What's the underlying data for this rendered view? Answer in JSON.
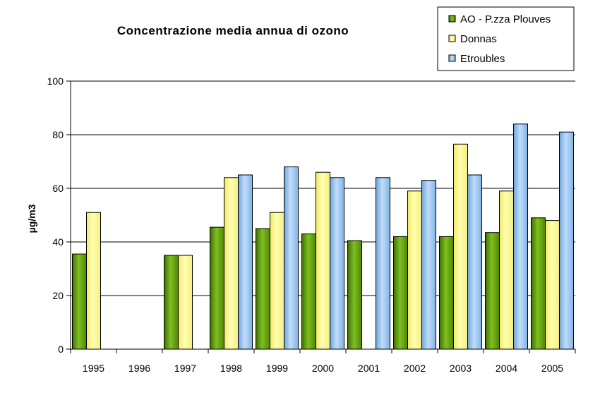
{
  "chart_data": {
    "type": "bar",
    "title": "Concentrazione media annua di ozono",
    "xlabel": "",
    "ylabel": "µg/m3",
    "ylim": [
      0,
      100
    ],
    "yticks": [
      0,
      20,
      40,
      60,
      80,
      100
    ],
    "grid": true,
    "legend_position": "top-right",
    "categories": [
      "1995",
      "1996",
      "1997",
      "1998",
      "1999",
      "2000",
      "2001",
      "2002",
      "2003",
      "2004",
      "2005"
    ],
    "series": [
      {
        "name": "AO - P.zza Plouves",
        "color": "#66A00E",
        "values": [
          35.5,
          null,
          35,
          45.5,
          45,
          43,
          40.5,
          42,
          42,
          43.5,
          49
        ]
      },
      {
        "name": "Donnas",
        "color": "#FFFF80",
        "values": [
          51,
          null,
          35,
          64,
          51,
          66,
          null,
          59,
          76.5,
          59,
          48
        ]
      },
      {
        "name": "Etroubles",
        "color": "#99CCFF",
        "values": [
          null,
          null,
          null,
          65,
          68,
          64,
          64,
          63,
          65,
          84,
          81
        ]
      }
    ]
  }
}
